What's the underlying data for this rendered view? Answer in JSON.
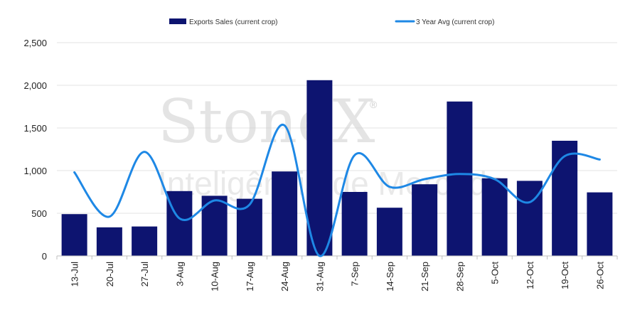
{
  "chart_data": {
    "type": "bar",
    "categories": [
      "13-Jul",
      "20-Jul",
      "27-Jul",
      "3-Aug",
      "10-Aug",
      "17-Aug",
      "24-Aug",
      "31-Aug",
      "7-Sep",
      "14-Sep",
      "21-Sep",
      "28-Sep",
      "5-Oct",
      "12-Oct",
      "19-Oct",
      "26-Oct"
    ],
    "series": [
      {
        "name": "Exports Sales (current crop)",
        "kind": "bar",
        "color": "#0d1470",
        "values": [
          490,
          335,
          345,
          760,
          705,
          670,
          990,
          2060,
          750,
          565,
          840,
          1810,
          910,
          880,
          1350,
          745
        ]
      },
      {
        "name": "3 Year Avg (current crop)",
        "kind": "line",
        "color": "#1e88e5",
        "values": [
          980,
          460,
          1220,
          440,
          650,
          600,
          1530,
          0,
          1180,
          810,
          900,
          960,
          900,
          630,
          1170,
          1130
        ]
      }
    ],
    "ylim": [
      0,
      2500
    ],
    "yticks": [
      0,
      500,
      1000,
      1500,
      2000,
      2500
    ],
    "ytick_labels": [
      "0",
      "500",
      "1,000",
      "1,500",
      "2,000",
      "2,500"
    ],
    "grid": true,
    "legend_position": "top-center",
    "title": "",
    "xlabel": "",
    "ylabel": ""
  },
  "watermark": {
    "brand": "StoneX",
    "reg": "®",
    "tagline": "Inteligência de Mercado"
  }
}
